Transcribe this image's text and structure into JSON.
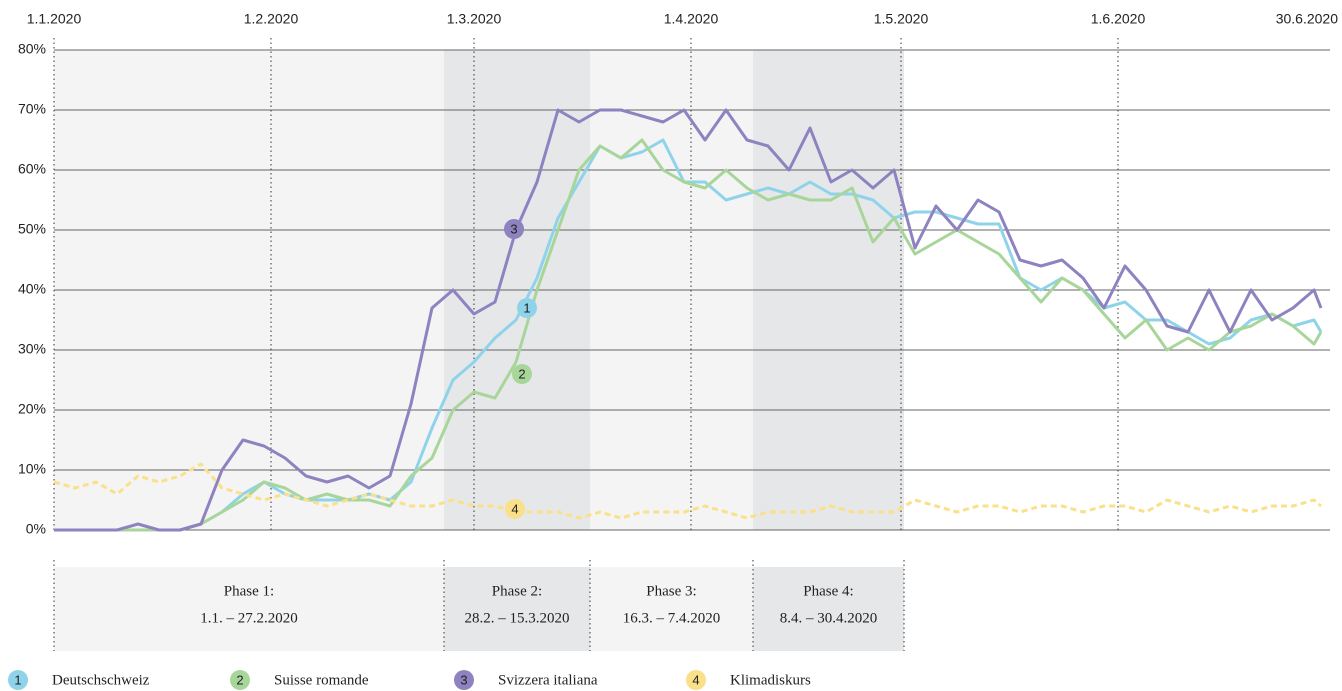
{
  "chart_data": {
    "type": "line",
    "x": [
      "1.1.2020",
      "4.1.2020",
      "7.1.2020",
      "10.1.2020",
      "13.1.2020",
      "16.1.2020",
      "19.1.2020",
      "22.1.2020",
      "25.1.2020",
      "28.1.2020",
      "31.1.2020",
      "3.2.2020",
      "6.2.2020",
      "9.2.2020",
      "12.2.2020",
      "15.2.2020",
      "18.2.2020",
      "21.2.2020",
      "24.2.2020",
      "27.2.2020",
      "1.3.2020",
      "4.3.2020",
      "7.3.2020",
      "10.3.2020",
      "13.3.2020",
      "16.3.2020",
      "19.3.2020",
      "22.3.2020",
      "25.3.2020",
      "28.3.2020",
      "31.3.2020",
      "3.4.2020",
      "6.4.2020",
      "9.4.2020",
      "12.4.2020",
      "15.4.2020",
      "18.4.2020",
      "21.4.2020",
      "24.4.2020",
      "27.4.2020",
      "30.4.2020",
      "3.5.2020",
      "6.5.2020",
      "9.5.2020",
      "12.5.2020",
      "15.5.2020",
      "18.5.2020",
      "21.5.2020",
      "24.5.2020",
      "27.5.2020",
      "30.5.2020",
      "2.6.2020",
      "5.6.2020",
      "8.6.2020",
      "11.6.2020",
      "14.6.2020",
      "17.6.2020",
      "20.6.2020",
      "23.6.2020",
      "26.6.2020",
      "29.6.2020",
      "30.6.2020"
    ],
    "series": [
      {
        "name": "Deutschschweiz",
        "marker": "1",
        "color": "#8fd3ea",
        "values": [
          0,
          0,
          0,
          0,
          0,
          0,
          0,
          1,
          3,
          6,
          8,
          6,
          5,
          5,
          5,
          6,
          5,
          8,
          17,
          25,
          28,
          32,
          35,
          42,
          52,
          58,
          64,
          62,
          63,
          65,
          58,
          58,
          55,
          56,
          57,
          56,
          58,
          56,
          56,
          55,
          52,
          53,
          53,
          52,
          51,
          51,
          42,
          40,
          42,
          40,
          37,
          38,
          35,
          35,
          33,
          31,
          32,
          35,
          36,
          34,
          35,
          33
        ]
      },
      {
        "name": "Suisse romande",
        "marker": "2",
        "color": "#a8d69a",
        "values": [
          0,
          0,
          0,
          0,
          0,
          0,
          0,
          1,
          3,
          5,
          8,
          7,
          5,
          6,
          5,
          5,
          4,
          9,
          12,
          20,
          23,
          22,
          28,
          40,
          50,
          60,
          64,
          62,
          65,
          60,
          58,
          57,
          60,
          57,
          55,
          56,
          55,
          55,
          57,
          48,
          52,
          46,
          48,
          50,
          48,
          46,
          42,
          38,
          42,
          40,
          36,
          32,
          35,
          30,
          32,
          30,
          33,
          34,
          36,
          34,
          31,
          33
        ]
      },
      {
        "name": "Svizzera italiana",
        "marker": "3",
        "color": "#8e82c0",
        "values": [
          0,
          0,
          0,
          0,
          1,
          0,
          0,
          1,
          10,
          15,
          14,
          12,
          9,
          8,
          9,
          7,
          9,
          21,
          37,
          40,
          36,
          38,
          50,
          58,
          70,
          68,
          70,
          70,
          69,
          68,
          70,
          65,
          70,
          65,
          64,
          60,
          67,
          58,
          60,
          57,
          60,
          47,
          54,
          50,
          55,
          53,
          45,
          44,
          45,
          42,
          37,
          44,
          40,
          34,
          33,
          40,
          33,
          40,
          35,
          37,
          40,
          37
        ]
      },
      {
        "name": "Klimadiskurs",
        "marker": "4",
        "color": "#fbe08a",
        "dashed": true,
        "values": [
          8,
          7,
          8,
          6,
          9,
          8,
          9,
          11,
          7,
          6,
          5,
          6,
          5,
          4,
          5,
          6,
          5,
          4,
          4,
          5,
          4,
          4,
          3,
          3,
          3,
          2,
          3,
          2,
          3,
          3,
          3,
          4,
          3,
          2,
          3,
          3,
          3,
          4,
          3,
          3,
          3,
          5,
          4,
          3,
          4,
          4,
          3,
          4,
          4,
          3,
          4,
          4,
          3,
          5,
          4,
          3,
          4,
          3,
          4,
          4,
          5,
          4
        ]
      }
    ],
    "xlim": [
      "1.1.2020",
      "30.6.2020"
    ],
    "xticks": [
      "1.1.2020",
      "1.2.2020",
      "1.3.2020",
      "1.4.2020",
      "1.5.2020",
      "1.6.2020",
      "30.6.2020"
    ],
    "ylim": [
      0,
      80
    ],
    "yticks": [
      {
        "value": 0,
        "label": "0%"
      },
      {
        "value": 10,
        "label": "10%"
      },
      {
        "value": 20,
        "label": "20%"
      },
      {
        "value": 30,
        "label": "30%"
      },
      {
        "value": 40,
        "label": "40%"
      },
      {
        "value": 50,
        "label": "50%"
      },
      {
        "value": 60,
        "label": "60%"
      },
      {
        "value": 70,
        "label": "70%"
      },
      {
        "value": 80,
        "label": "80%"
      }
    ],
    "grid": true,
    "phases": [
      {
        "name": "Phase 1:",
        "range": "1.1. – 27.2.2020"
      },
      {
        "name": "Phase 2:",
        "range": "28.2. – 15.3.2020"
      },
      {
        "name": "Phase 3:",
        "range": "16.3. – 7.4.2020"
      },
      {
        "name": "Phase 4:",
        "range": "8.4. – 30.4.2020"
      }
    ]
  }
}
